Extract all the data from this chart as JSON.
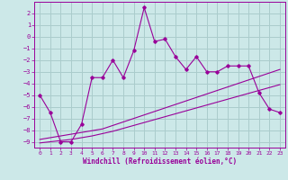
{
  "xlabel": "Windchill (Refroidissement éolien,°C)",
  "bg_color": "#cce8e8",
  "grid_color": "#aacccc",
  "line_color": "#990099",
  "x": [
    0,
    1,
    2,
    3,
    4,
    5,
    6,
    7,
    8,
    9,
    10,
    11,
    12,
    13,
    14,
    15,
    16,
    17,
    18,
    19,
    20,
    21,
    22,
    23
  ],
  "y_main": [
    -5.0,
    -6.5,
    -9.0,
    -9.0,
    -7.5,
    -3.5,
    -3.5,
    -2.0,
    -3.5,
    -1.2,
    2.5,
    -0.4,
    -0.2,
    -1.7,
    -2.8,
    -1.7,
    -3.0,
    -3.0,
    -2.5,
    -2.5,
    -2.5,
    -4.8,
    -6.2,
    -6.5
  ],
  "y_trend1": [
    -8.8,
    -8.65,
    -8.5,
    -8.35,
    -8.2,
    -8.05,
    -7.9,
    -7.6,
    -7.3,
    -7.0,
    -6.7,
    -6.4,
    -6.1,
    -5.8,
    -5.5,
    -5.2,
    -4.9,
    -4.6,
    -4.3,
    -4.0,
    -3.7,
    -3.4,
    -3.1,
    -2.8
  ],
  "y_trend2": [
    -9.1,
    -9.0,
    -8.9,
    -8.8,
    -8.65,
    -8.5,
    -8.3,
    -8.1,
    -7.85,
    -7.6,
    -7.35,
    -7.1,
    -6.85,
    -6.6,
    -6.35,
    -6.1,
    -5.85,
    -5.6,
    -5.35,
    -5.1,
    -4.85,
    -4.6,
    -4.35,
    -4.1
  ],
  "ylim": [
    -9.5,
    3.0
  ],
  "xlim": [
    -0.5,
    23.5
  ],
  "yticks": [
    2,
    1,
    0,
    -1,
    -2,
    -3,
    -4,
    -5,
    -6,
    -7,
    -8,
    -9
  ],
  "xticks": [
    0,
    1,
    2,
    3,
    4,
    5,
    6,
    7,
    8,
    9,
    10,
    11,
    12,
    13,
    14,
    15,
    16,
    17,
    18,
    19,
    20,
    21,
    22,
    23
  ]
}
